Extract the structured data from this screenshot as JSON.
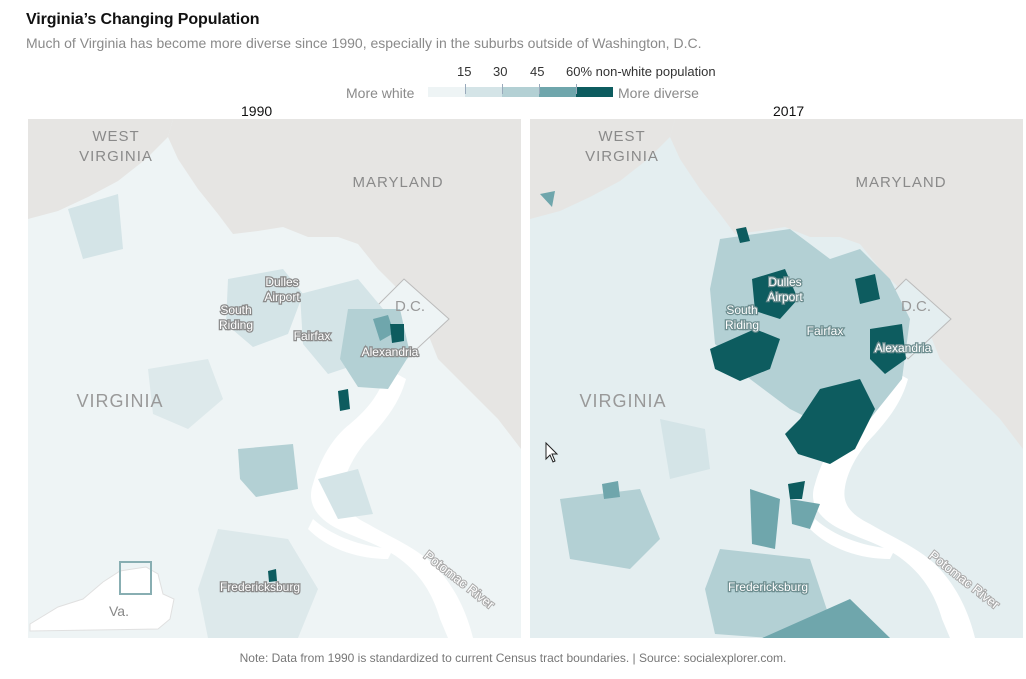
{
  "title": "Virginia’s Changing Population",
  "subtitle": "Much of Virginia has become more diverse since 1990, especially in the suburbs outside of Washington, D.C.",
  "legend": {
    "ticks": [
      "15",
      "30",
      "45",
      "60% non-white population"
    ],
    "left_label": "More white",
    "right_label": "More diverse",
    "colors": [
      "#eef4f5",
      "#d4e4e7",
      "#b3d0d4",
      "#6fa6ac",
      "#0d5c5f"
    ]
  },
  "maps": [
    {
      "year": "1990",
      "labels": {
        "west_virginia": [
          "WEST",
          "VIRGINIA"
        ],
        "maryland": "MARYLAND",
        "dc": "D.C.",
        "virginia": "VIRGINIA",
        "dulles": [
          "Dulles",
          "Airport"
        ],
        "south_riding": [
          "South",
          "Riding"
        ],
        "fairfax": "Fairfax",
        "alexandria": "Alexandria",
        "fredericksburg": "Fredericksburg",
        "river": "Potomac River",
        "inset": "Va."
      }
    },
    {
      "year": "2017",
      "labels": {
        "west_virginia": [
          "WEST",
          "VIRGINIA"
        ],
        "maryland": "MARYLAND",
        "dc": "D.C.",
        "virginia": "VIRGINIA",
        "dulles": [
          "Dulles",
          "Airport"
        ],
        "south_riding": [
          "South",
          "Riding"
        ],
        "fairfax": "Fairfax",
        "alexandria": "Alexandria",
        "fredericksburg": "Fredericksburg",
        "river": "Potomac River"
      }
    }
  ],
  "colors": {
    "land_other": "#e6e5e3",
    "water": "#ffffff",
    "dark_tract": "#0d5c5f"
  },
  "note": "Note: Data from 1990 is standardized to current Census tract boundaries. | Source: socialexplorer.com."
}
